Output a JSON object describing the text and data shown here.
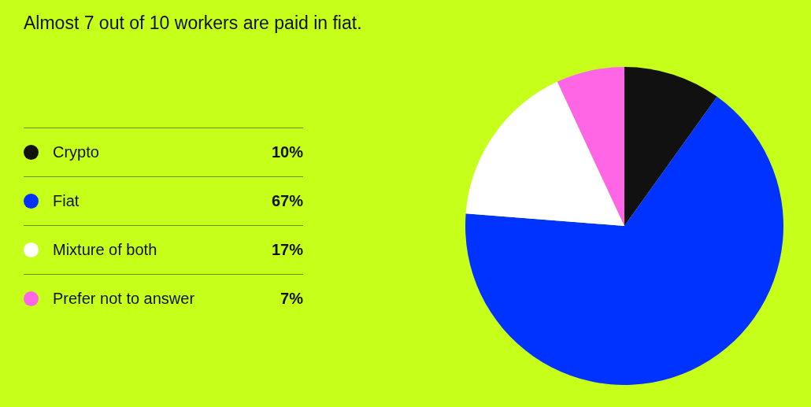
{
  "chart_data": {
    "type": "pie",
    "title": "Almost 7 out of 10 workers are paid in fiat.",
    "categories": [
      "Crypto",
      "Fiat",
      "Mixture of both",
      "Prefer not to answer"
    ],
    "values": [
      10,
      67,
      17,
      7
    ],
    "value_labels": [
      "10%",
      "67%",
      "17%",
      "7%"
    ],
    "colors": [
      "#111111",
      "#0033ff",
      "#ffffff",
      "#ff66e6"
    ],
    "legend": "left"
  }
}
